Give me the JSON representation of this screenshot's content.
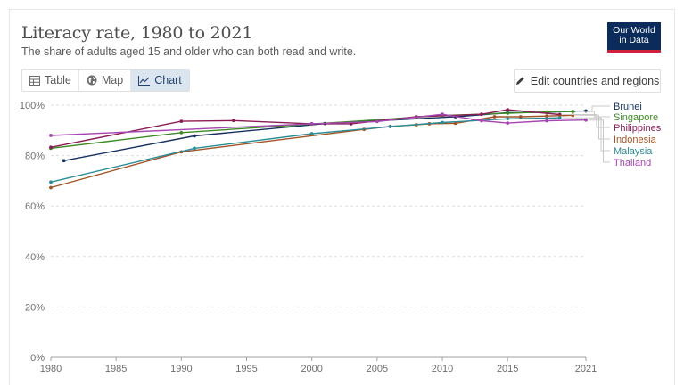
{
  "header": {
    "title": "Literacy rate, 1980 to 2021",
    "subtitle": "The share of adults aged 15 and older who can both read and write.",
    "logo_line1": "Our World",
    "logo_line2": "in Data"
  },
  "tabs": [
    {
      "label": "Table",
      "icon": "table-icon"
    },
    {
      "label": "Map",
      "icon": "globe-icon"
    },
    {
      "label": "Chart",
      "icon": "line-chart-icon",
      "active": true
    }
  ],
  "edit_button": {
    "label": "Edit countries and regions",
    "icon": "pencil-icon"
  },
  "chart_data": {
    "type": "line",
    "title": "Literacy rate, 1980 to 2021",
    "subtitle": "The share of adults aged 15 and older who can both read and write.",
    "xlim": [
      1980,
      2021
    ],
    "ylim": [
      0,
      100
    ],
    "x_ticks": [
      1980,
      1985,
      1990,
      1995,
      2000,
      2005,
      2010,
      2015,
      2021
    ],
    "y_ticks": [
      0,
      20,
      40,
      60,
      80,
      100
    ],
    "y_tick_labels": [
      "0%",
      "20%",
      "40%",
      "60%",
      "80%",
      "100%"
    ],
    "grid": "horizontal dashed",
    "legend": "right",
    "series": [
      {
        "name": "Brunei",
        "color": "#16305e",
        "points": [
          [
            1981,
            78
          ],
          [
            1991,
            87.8
          ],
          [
            2001,
            92.7
          ],
          [
            2011,
            95.4
          ],
          [
            2015,
            97
          ],
          [
            2018,
            97.2
          ],
          [
            2021,
            97.7
          ]
        ]
      },
      {
        "name": "Singapore",
        "color": "#3d8b25",
        "points": [
          [
            1980,
            82.9
          ],
          [
            1990,
            89.1
          ],
          [
            2000,
            92.5
          ],
          [
            2010,
            95.9
          ],
          [
            2015,
            96.8
          ],
          [
            2018,
            97.3
          ],
          [
            2020,
            97.5
          ]
        ]
      },
      {
        "name": "Philippines",
        "color": "#8a1c55",
        "points": [
          [
            1980,
            83.3
          ],
          [
            1990,
            93.6
          ],
          [
            1994,
            93.9
          ],
          [
            2000,
            92.6
          ],
          [
            2003,
            92.6
          ],
          [
            2008,
            95.4
          ],
          [
            2013,
            96.4
          ],
          [
            2015,
            98.2
          ],
          [
            2019,
            96.3
          ]
        ]
      },
      {
        "name": "Indonesia",
        "color": "#a35224",
        "points": [
          [
            1980,
            67.3
          ],
          [
            1990,
            81.5
          ],
          [
            2004,
            90.4
          ],
          [
            2006,
            91.6
          ],
          [
            2008,
            92.2
          ],
          [
            2009,
            92.6
          ],
          [
            2011,
            92.8
          ],
          [
            2014,
            95.4
          ],
          [
            2016,
            95.4
          ],
          [
            2018,
            95.7
          ],
          [
            2020,
            96
          ]
        ]
      },
      {
        "name": "Malaysia",
        "color": "#2a8c97",
        "points": [
          [
            1980,
            69.5
          ],
          [
            1991,
            82.9
          ],
          [
            2000,
            88.7
          ],
          [
            2006,
            91.5
          ],
          [
            2010,
            93.1
          ],
          [
            2015,
            94.6
          ],
          [
            2019,
            95
          ]
        ]
      },
      {
        "name": "Thailand",
        "color": "#a646b0",
        "points": [
          [
            1980,
            88
          ],
          [
            2000,
            92.6
          ],
          [
            2005,
            93.5
          ],
          [
            2010,
            96.4
          ],
          [
            2013,
            93.8
          ],
          [
            2015,
            92.9
          ],
          [
            2018,
            93.8
          ],
          [
            2021,
            94.1
          ]
        ]
      }
    ]
  }
}
